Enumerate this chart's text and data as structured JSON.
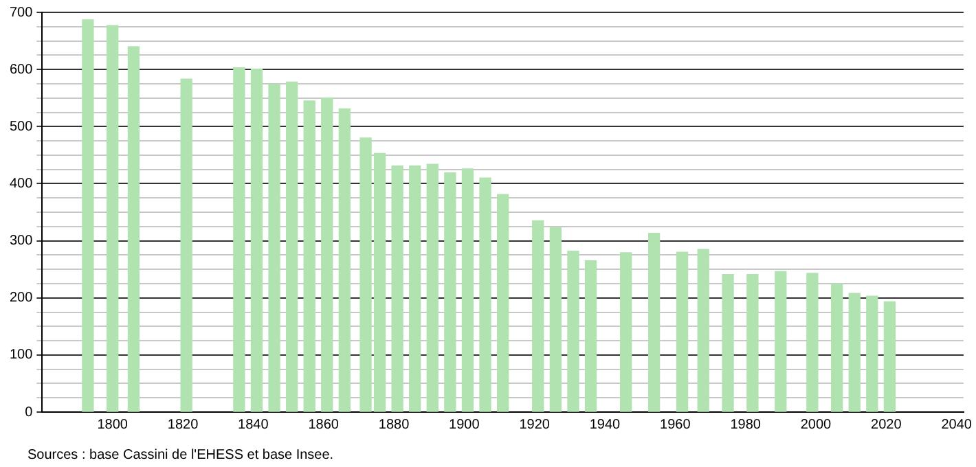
{
  "chart_data": {
    "type": "bar",
    "x": [
      1793,
      1800,
      1806,
      1821,
      1836,
      1841,
      1846,
      1851,
      1856,
      1861,
      1866,
      1872,
      1876,
      1881,
      1886,
      1891,
      1896,
      1901,
      1906,
      1911,
      1921,
      1926,
      1931,
      1936,
      1946,
      1954,
      1962,
      1968,
      1975,
      1982,
      1990,
      1999,
      2006,
      2011,
      2016,
      2021
    ],
    "values": [
      687,
      677,
      640,
      583,
      603,
      601,
      574,
      578,
      545,
      550,
      531,
      480,
      453,
      431,
      431,
      434,
      419,
      426,
      410,
      381,
      335,
      323,
      282,
      265,
      279,
      313,
      280,
      285,
      241,
      241,
      246,
      243,
      224,
      208,
      203,
      193
    ],
    "color": "#b0e3b0",
    "xlim": [
      1780,
      2042
    ],
    "xticks": [
      1800,
      1820,
      1840,
      1860,
      1880,
      1900,
      1920,
      1940,
      1960,
      1980,
      2000,
      2020,
      2040
    ],
    "ylim": [
      0,
      700
    ],
    "yticks": [
      0,
      {
        "value": 25,
        "label": null
      },
      {
        "value": 50,
        "label": null
      },
      {
        "value": 75,
        "label": null
      },
      100,
      {
        "value": 125,
        "label": null
      },
      {
        "value": 150,
        "label": null
      },
      {
        "value": 175,
        "label": null
      },
      200,
      {
        "value": 225,
        "label": null
      },
      {
        "value": 250,
        "label": null
      },
      {
        "value": 275,
        "label": null
      },
      300,
      {
        "value": 325,
        "label": null
      },
      {
        "value": 350,
        "label": null
      },
      {
        "value": 375,
        "label": null
      },
      400,
      {
        "value": 425,
        "label": null
      },
      {
        "value": 450,
        "label": null
      },
      {
        "value": 475,
        "label": null
      },
      500,
      {
        "value": 525,
        "label": null
      },
      {
        "value": 550,
        "label": null
      },
      {
        "value": 575,
        "label": null
      },
      600,
      {
        "value": 625,
        "label": null
      },
      {
        "value": 650,
        "label": null
      },
      {
        "value": 675,
        "label": null
      },
      700
    ],
    "grid": "y",
    "legend": false,
    "annotations": [
      "Sources : base Cassini de l'EHESS et base Insee."
    ]
  }
}
